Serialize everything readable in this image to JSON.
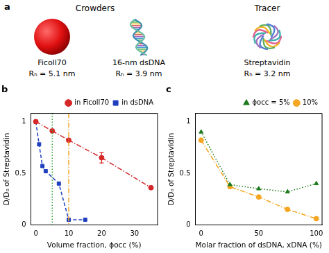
{
  "diagram": {
    "label": "a",
    "groups": [
      {
        "title": "Crowders",
        "items": [
          {
            "name": "Ficoll70",
            "radius": "Rₕ = 5.1 nm"
          },
          {
            "name": "16-nm dsDNA",
            "radius": "Rₕ = 3.9 nm"
          }
        ]
      },
      {
        "title": "Tracer",
        "items": [
          {
            "name": "Streptavidin",
            "radius": "Rₕ = 3.2 nm"
          }
        ]
      }
    ]
  },
  "chart_data": [
    {
      "type": "line",
      "title": "b",
      "x_label": "Volume fraction, ϕocc (%)",
      "y_label": "D/D₀ of Streptavidin",
      "xlim": [
        -1.5,
        37
      ],
      "xticks": [
        0,
        10,
        20,
        30
      ],
      "ylim": [
        0,
        1.08
      ],
      "yticks": [
        0,
        0.5,
        1
      ],
      "grid": false,
      "legend": "upper right",
      "series": [
        {
          "name": "in Ficoll70",
          "color": "#d62728",
          "marker": "circle",
          "line_style": "dashdot",
          "x": [
            0,
            5,
            10,
            20,
            35
          ],
          "values": [
            1.0,
            0.91,
            0.82,
            0.65,
            0.36
          ],
          "errors": [
            null,
            null,
            null,
            0.05,
            null
          ]
        },
        {
          "name": "in dsDNA",
          "color": "#1f3fbf",
          "marker": "square",
          "line_style": "dashed",
          "x": [
            0,
            1,
            2,
            3,
            7,
            10,
            15
          ],
          "values": [
            1.0,
            0.78,
            0.57,
            0.52,
            0.4,
            0.05,
            0.05
          ]
        }
      ],
      "vlines": [
        {
          "x": 5,
          "color": "#2ca02c",
          "line_style": "dotted"
        },
        {
          "x": 10,
          "color": "#f5a623",
          "line_style": "dashdot"
        }
      ]
    },
    {
      "type": "line",
      "title": "c",
      "x_label": "Molar fraction of dsDNA, xDNA (%)",
      "y_label": "D/D₀ of Streptavidin",
      "xlim": [
        -5,
        105
      ],
      "xticks": [
        0,
        50,
        100
      ],
      "ylim": [
        0,
        1.08
      ],
      "yticks": [
        0,
        0.5,
        1
      ],
      "grid": false,
      "legend": "upper right",
      "series": [
        {
          "name": "ϕocc = 5%",
          "color": "#1e7b1e",
          "marker": "triangle",
          "line_style": "dotted",
          "x": [
            0,
            25,
            50,
            75,
            100
          ],
          "values": [
            0.9,
            0.39,
            0.35,
            0.32,
            0.4
          ]
        },
        {
          "name": "10%",
          "color": "#f5a623",
          "marker": "circle",
          "line_style": "dashdot",
          "x": [
            0,
            25,
            50,
            75,
            100
          ],
          "values": [
            0.82,
            0.37,
            0.27,
            0.15,
            0.06
          ]
        }
      ]
    }
  ]
}
